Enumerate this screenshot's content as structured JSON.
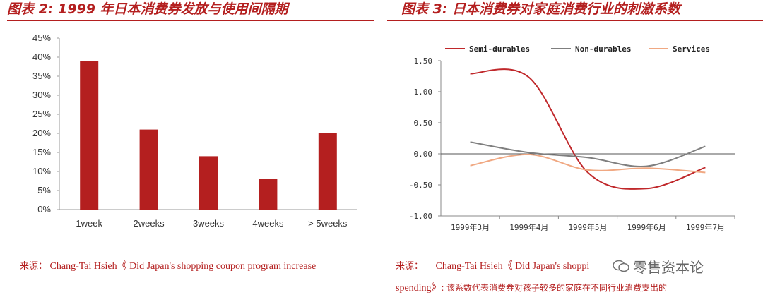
{
  "left": {
    "title": "图表 2: 1999 年日本消费券发放与使用间隔期",
    "source": {
      "label": "来源：",
      "text": "Chang-Tai Hsieh《 Did Japan's shopping coupon program increase"
    }
  },
  "right": {
    "title": "图表 3: 日本消费券对家庭消费行业的刺激系数",
    "source": {
      "label": "来源：",
      "text": "Chang-Tai Hsieh《 Did Japan's shoppi",
      "line2_latin": "spending》:",
      "line2_cn": "该系数代表消费券对孩子较多的家庭在不同行业消费支出的"
    },
    "watermark": "零售资本论"
  },
  "chart_data": [
    {
      "type": "bar",
      "title": "",
      "categories": [
        "1week",
        "2weeks",
        "3weeks",
        "4weeks",
        "> 5weeks"
      ],
      "values": [
        39,
        21,
        14,
        8,
        20
      ],
      "ylim": [
        0,
        45
      ],
      "yticks": [
        "0%",
        "5%",
        "10%",
        "15%",
        "20%",
        "25%",
        "30%",
        "35%",
        "40%",
        "45%"
      ],
      "color": "#b41f1f",
      "grid": false
    },
    {
      "type": "line",
      "title": "",
      "x": [
        "1999年3月",
        "1999年4月",
        "1999年5月",
        "1999年6月",
        "1999年7月"
      ],
      "series": [
        {
          "name": "Semi-durables",
          "values": [
            1.29,
            1.23,
            -0.3,
            -0.56,
            -0.22
          ],
          "color": "#c0282b"
        },
        {
          "name": "Non-durables",
          "values": [
            0.19,
            0.02,
            -0.06,
            -0.2,
            0.12
          ],
          "color": "#7f7f7f"
        },
        {
          "name": "Services",
          "values": [
            -0.19,
            -0.01,
            -0.26,
            -0.23,
            -0.3
          ],
          "color": "#f0a882"
        }
      ],
      "ylim": [
        -1.0,
        1.5
      ],
      "yticks": [
        "1.50",
        "1.00",
        "0.50",
        "0.00",
        "-0.50",
        "-1.00"
      ],
      "legend": "top",
      "grid": false
    }
  ]
}
